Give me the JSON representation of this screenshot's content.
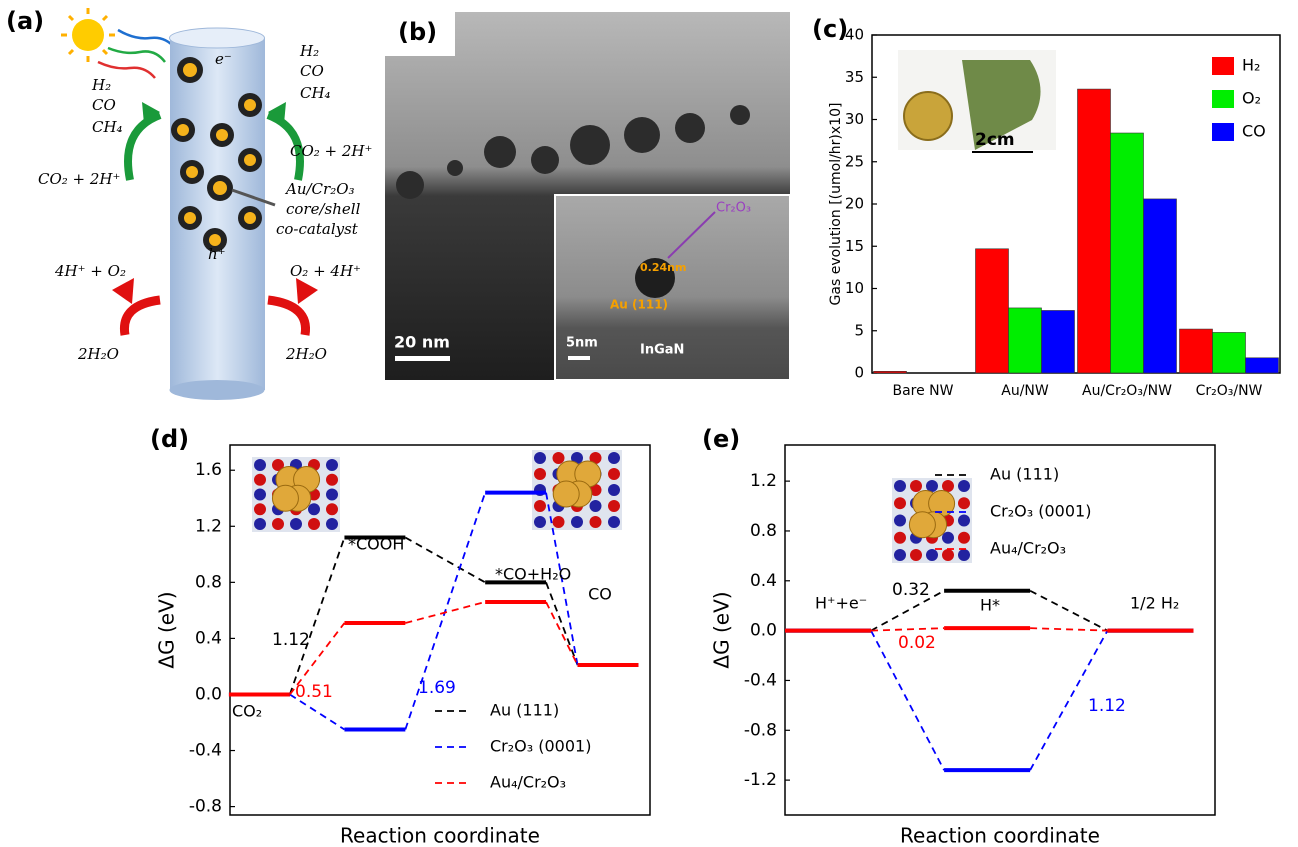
{
  "panel_a": {
    "label": "(a)",
    "electron": "e⁻",
    "hole": "h⁺",
    "products_left": [
      "H₂",
      "CO",
      "CH₄"
    ],
    "products_right": [
      "H₂",
      "CO",
      "CH₄"
    ],
    "reactant_left": "CO₂ + 2H⁺",
    "reactant_right": "CO₂ + 2H⁺",
    "catalyst": [
      "Au/Cr₂O₃",
      "core/shell",
      "co-catalyst"
    ],
    "oxidation_left": "4H⁺ + O₂",
    "oxidation_right": "O₂ + 4H⁺",
    "water_left": "2H₂O",
    "water_right": "2H₂O"
  },
  "panel_b": {
    "label": "(b)",
    "scale_main": "20 nm",
    "scale_inset": "5nm",
    "substrate": "InGaN",
    "shell": "Cr₂O₃",
    "spacing": "0.24nm",
    "facet": "Au (111)"
  },
  "chart_data": [
    {
      "type": "bar",
      "panel": "(c)",
      "ylabel": "Gas evolution [(umol/hr)x10]",
      "categories": [
        "Bare NW",
        "Au/NW",
        "Au/Cr₂O₃/NW",
        "Cr₂O₃/NW"
      ],
      "series": [
        {
          "name": "H₂",
          "color": "#ff0000",
          "values": [
            0.2,
            14.7,
            33.6,
            5.2
          ]
        },
        {
          "name": "O₂",
          "color": "#00ee00",
          "values": [
            0,
            7.7,
            28.4,
            4.8
          ]
        },
        {
          "name": "CO",
          "color": "#0000ff",
          "values": [
            0,
            7.4,
            20.6,
            1.8
          ]
        }
      ],
      "ylim": [
        0,
        40
      ],
      "yticks": [
        0,
        5,
        10,
        15,
        20,
        25,
        30,
        35,
        40
      ],
      "legend": "upper right",
      "inset_label": "2cm"
    },
    {
      "type": "energy",
      "panel": "(d)",
      "xlabel": "Reaction coordinate",
      "ylabel": "ΔG (eV)",
      "categories": [
        "CO₂",
        "*COOH",
        "*CO+H₂O",
        "CO"
      ],
      "series": [
        {
          "name": "Au (111)",
          "color": "#000000",
          "values": [
            0,
            1.12,
            0.8,
            0.21
          ]
        },
        {
          "name": "Cr₂O₃ (0001)",
          "color": "#0000ff",
          "values": [
            0,
            -0.25,
            1.44,
            0.21
          ]
        },
        {
          "name": "Au₄/Cr₂O₃",
          "color": "#ff0000",
          "values": [
            0,
            0.51,
            0.66,
            0.21
          ]
        }
      ],
      "ylim": [
        -0.86,
        1.78
      ],
      "yticks": [
        -0.8,
        -0.4,
        {
          "value": 0,
          "label": "0.0"
        },
        0.4,
        0.8,
        1.2,
        1.6
      ],
      "legend": "lower right",
      "annotations": [
        {
          "text": "1.12",
          "color": "#000000"
        },
        {
          "text": "0.51",
          "color": "#ff0000"
        },
        {
          "text": "1.69",
          "color": "#0000ff"
        }
      ]
    },
    {
      "type": "energy",
      "panel": "(e)",
      "xlabel": "Reaction coordinate",
      "ylabel": "ΔG (eV)",
      "categories": [
        "H⁺+e⁻",
        "H*",
        "1/2 H₂"
      ],
      "series": [
        {
          "name": "Au (111)",
          "color": "#000000",
          "values": [
            0,
            0.32,
            0
          ]
        },
        {
          "name": "Cr₂O₃ (0001)",
          "color": "#0000ff",
          "values": [
            0,
            -1.12,
            0
          ]
        },
        {
          "name": "Au₄/Cr₂O₃",
          "color": "#ff0000",
          "values": [
            0,
            0.02,
            0
          ]
        }
      ],
      "ylim": [
        -1.48,
        1.49
      ],
      "yticks": [
        -1.2,
        -0.8,
        -0.4,
        {
          "value": 0,
          "label": "0.0"
        },
        0.4,
        0.8,
        1.2
      ],
      "legend": "upper right",
      "annotations": [
        {
          "text": "0.32",
          "color": "#000000"
        },
        {
          "text": "0.02",
          "color": "#ff0000"
        },
        {
          "text": "1.12",
          "color": "#0000ff"
        }
      ]
    }
  ]
}
